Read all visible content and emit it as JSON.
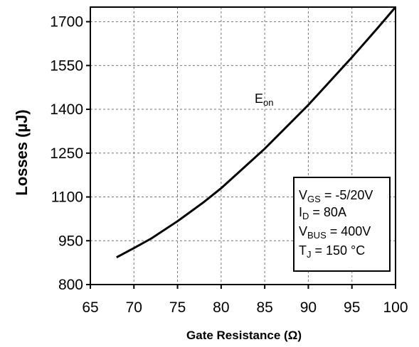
{
  "chart_data": {
    "type": "line",
    "title": "",
    "xlabel": "Gate Resistance (Ω)",
    "ylabel": "Losses (µJ)",
    "xlim": [
      65,
      100
    ],
    "ylim": [
      800,
      1750
    ],
    "x_ticks": [
      "65",
      "70",
      "75",
      "80",
      "85",
      "90",
      "95",
      "100"
    ],
    "y_ticks": [
      "800",
      "950",
      "1100",
      "1250",
      "1400",
      "1550",
      "1700"
    ],
    "grid": true,
    "series": [
      {
        "name": "Eon",
        "x": [
          68,
          70,
          72,
          75,
          78,
          80,
          82,
          85,
          88,
          90,
          92,
          95,
          98,
          100
        ],
        "y": [
          893,
          925,
          958,
          1017,
          1082,
          1130,
          1184,
          1265,
          1355,
          1415,
          1480,
          1578,
          1680,
          1750
        ]
      }
    ],
    "annotations": {
      "curve_label": {
        "main": "E",
        "sub": "on"
      },
      "conditions": [
        {
          "main": "V",
          "sub": "GS",
          "rest": " = -5/20V"
        },
        {
          "main": "I",
          "sub": "D",
          "rest": " = 80A"
        },
        {
          "main": "V",
          "sub": "BUS",
          "rest": " = 400V"
        },
        {
          "main": "T",
          "sub": "J",
          "rest": " = 150 °C"
        }
      ]
    }
  }
}
